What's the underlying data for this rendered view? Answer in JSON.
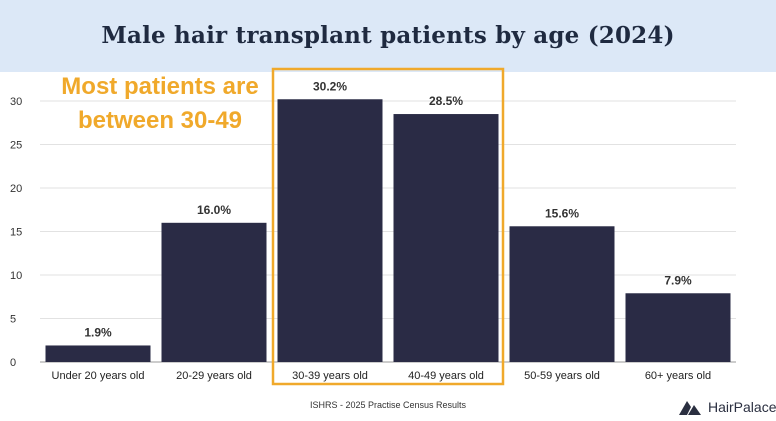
{
  "header": {
    "title": "Male hair transplant patients by age (2024)"
  },
  "callout": {
    "line1": "Most patients are",
    "line2": "between 30-49"
  },
  "footer": {
    "source": "ISHRS - 2025 Practise Census Results",
    "brand": "HairPalace"
  },
  "colors": {
    "bar": "#2a2b45",
    "highlight": "#f0a92b",
    "header_bg": "#dce8f7",
    "grid": "#e2e2e2"
  },
  "chart_data": {
    "type": "bar",
    "title": "Male hair transplant patients by age (2024)",
    "categories": [
      "Under 20 years old",
      "20-29 years old",
      "30-39 years old",
      "40-49 years old",
      "50-59 years old",
      "60+ years old"
    ],
    "values": [
      1.9,
      16.0,
      30.2,
      28.5,
      15.6,
      7.9
    ],
    "data_labels": [
      "1.9%",
      "16.0%",
      "30.2%",
      "28.5%",
      "15.6%",
      "7.9%"
    ],
    "yticks": [
      0,
      5,
      10,
      15,
      20,
      25,
      30
    ],
    "ylim": [
      0,
      30
    ],
    "highlight_categories": [
      "30-39 years old",
      "40-49 years old"
    ],
    "xlabel": "",
    "ylabel": "",
    "grid": true
  }
}
